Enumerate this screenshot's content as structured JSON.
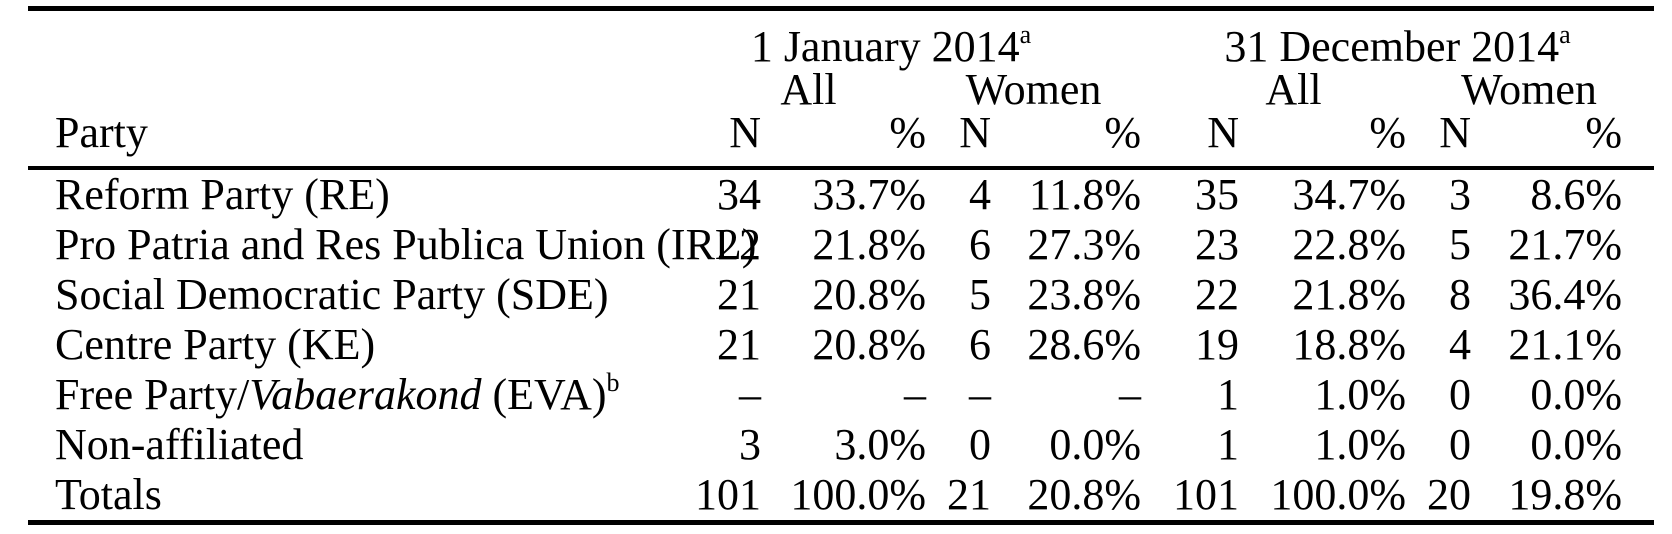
{
  "table": {
    "column_header": "Party",
    "groups": [
      {
        "label": "1 January 2014",
        "footnote_mark": "a",
        "subgroups": [
          {
            "label": "All"
          },
          {
            "label": "Women"
          }
        ]
      },
      {
        "label": "31 December 2014",
        "footnote_mark": "a",
        "subgroups": [
          {
            "label": "All"
          },
          {
            "label": "Women"
          }
        ]
      }
    ],
    "measure_headers": [
      "N",
      "%",
      "N",
      "%",
      "N",
      "%",
      "N",
      "%"
    ],
    "empty_value": "–",
    "rows": [
      {
        "party": [
          {
            "t": "Reform Party (RE)"
          }
        ],
        "values": [
          "34",
          "33.7%",
          "4",
          "11.8%",
          "35",
          "34.7%",
          "3",
          "8.6%"
        ]
      },
      {
        "party": [
          {
            "t": "Pro Patria and Res Publica Union (IRL)"
          }
        ],
        "values": [
          "22",
          "21.8%",
          "6",
          "27.3%",
          "23",
          "22.8%",
          "5",
          "21.7%"
        ]
      },
      {
        "party": [
          {
            "t": "Social Democratic Party (SDE)"
          }
        ],
        "values": [
          "21",
          "20.8%",
          "5",
          "23.8%",
          "22",
          "21.8%",
          "8",
          "36.4%"
        ]
      },
      {
        "party": [
          {
            "t": "Centre Party (KE)"
          }
        ],
        "values": [
          "21",
          "20.8%",
          "6",
          "28.6%",
          "19",
          "18.8%",
          "4",
          "21.1%"
        ]
      },
      {
        "party": [
          {
            "t": "Free Party/"
          },
          {
            "t": "Vabaerakond",
            "style": "italic"
          },
          {
            "t": " (EVA)"
          },
          {
            "t": "b",
            "style": "sup"
          }
        ],
        "values": [
          "–",
          "–",
          "–",
          "–",
          "1",
          "1.0%",
          "0",
          "0.0%"
        ]
      },
      {
        "party": [
          {
            "t": "Non-affiliated"
          }
        ],
        "values": [
          "3",
          "3.0%",
          "0",
          "0.0%",
          "1",
          "1.0%",
          "0",
          "0.0%"
        ]
      },
      {
        "party": [
          {
            "t": "Totals"
          }
        ],
        "values": [
          "101",
          "100.0%",
          "21",
          "20.8%",
          "101",
          "100.0%",
          "20",
          "19.8%"
        ]
      }
    ],
    "colors": {
      "text": "#000000",
      "background": "#ffffff",
      "rule": "#000000"
    }
  }
}
